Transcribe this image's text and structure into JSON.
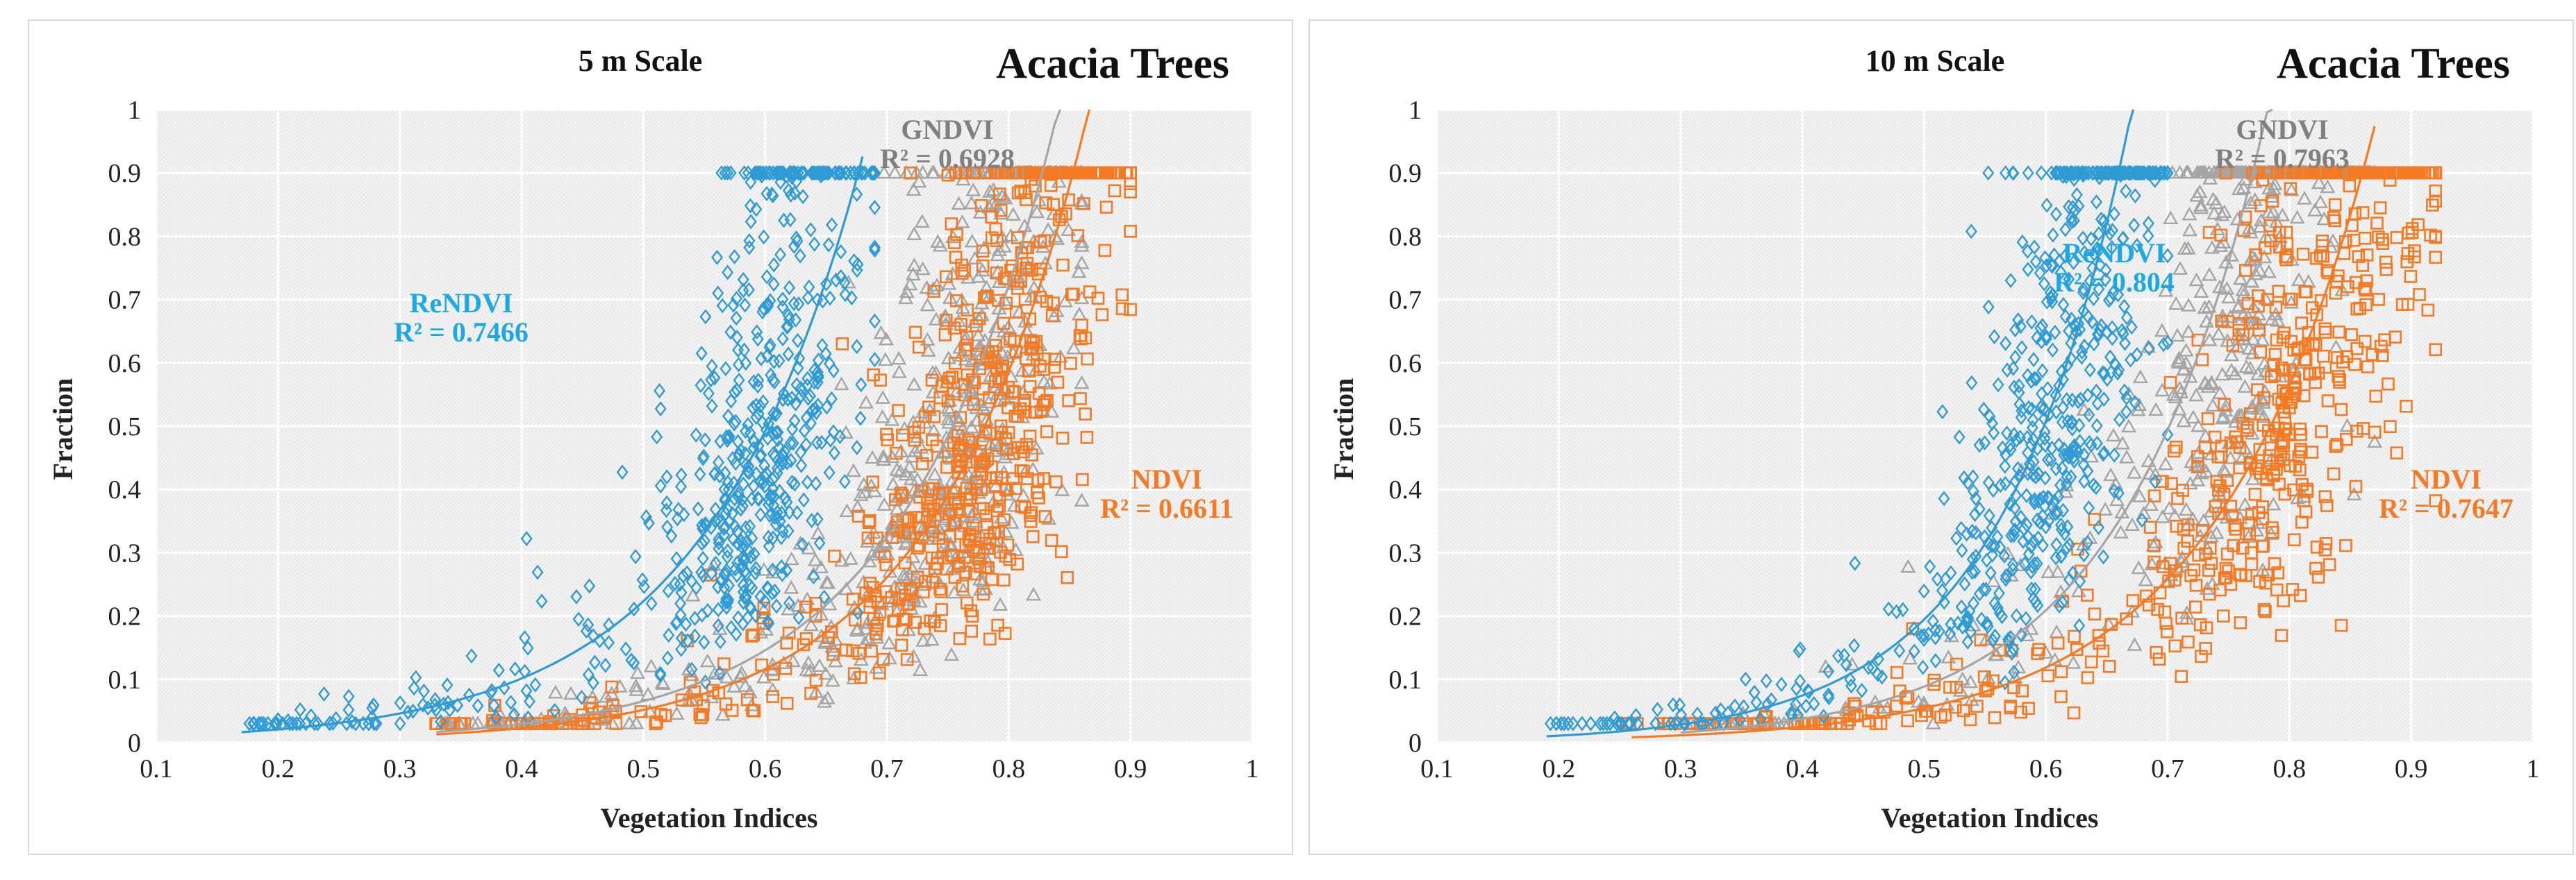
{
  "chart_data": [
    {
      "type": "scatter",
      "title": "5 m Scale",
      "species_label": "Acacia Trees",
      "xlabel": "Vegetation Indices",
      "ylabel": "Fraction",
      "xlim": [
        0.1,
        1
      ],
      "ylim": [
        0,
        1
      ],
      "xticks": [
        "0.1",
        "0.2",
        "0.3",
        "0.4",
        "0.5",
        "0.6",
        "0.7",
        "0.8",
        "0.9",
        "1"
      ],
      "yticks": [
        "0",
        "0.1",
        "0.2",
        "0.3",
        "0.4",
        "0.5",
        "0.6",
        "0.7",
        "0.8",
        "0.9",
        "1"
      ],
      "series": [
        {
          "name": "GNDVI",
          "r2_text": "R² = 0.6928",
          "color": "#a5a5a5",
          "marker": "triangle",
          "x_range": [
            0.33,
            0.86
          ],
          "x_center": 0.77,
          "x_spread": 0.055,
          "trend": {
            "a": 0.0012,
            "b": 8.0,
            "x0": 0.33,
            "x1": 0.86
          }
        },
        {
          "name": "NDVI",
          "r2_text": "R² = 0.6611",
          "color": "#f47a24",
          "marker": "square",
          "x_range": [
            0.32,
            0.9
          ],
          "x_center": 0.79,
          "x_spread": 0.06,
          "trend": {
            "a": 0.0009,
            "b": 8.1,
            "x0": 0.33,
            "x1": 0.88
          }
        },
        {
          "name": "ReNDVI",
          "r2_text": "R² = 0.7466",
          "color": "#2e9ad6",
          "marker": "diamond",
          "x_range": [
            0.17,
            0.69
          ],
          "x_center": 0.6,
          "x_spread": 0.045,
          "trend": {
            "a": 0.0043,
            "b": 7.9,
            "x0": 0.17,
            "x1": 0.68
          }
        }
      ]
    },
    {
      "type": "scatter",
      "title": "10 m Scale",
      "species_label": "Acacia Trees",
      "xlabel": "Vegetation Indices",
      "ylabel": "Fraction",
      "xlim": [
        0.1,
        1
      ],
      "ylim": [
        0,
        1
      ],
      "xticks": [
        "0.1",
        "0.2",
        "0.3",
        "0.4",
        "0.5",
        "0.6",
        "0.7",
        "0.8",
        "0.9",
        "1"
      ],
      "yticks": [
        "0",
        "0.1",
        "0.2",
        "0.3",
        "0.4",
        "0.5",
        "0.6",
        "0.7",
        "0.8",
        "0.9",
        "1"
      ],
      "series": [
        {
          "name": "GNDVI",
          "r2_text": "R² = 0.7963",
          "color": "#a5a5a5",
          "marker": "triangle",
          "x_range": [
            0.3,
            0.87
          ],
          "x_center": 0.78,
          "x_spread": 0.05,
          "trend": {
            "a": 0.0012,
            "b": 8.6,
            "x0": 0.3,
            "x1": 0.84
          }
        },
        {
          "name": "NDVI",
          "r2_text": "R² = 0.7647",
          "color": "#f47a24",
          "marker": "square",
          "x_range": [
            0.25,
            0.92
          ],
          "x_center": 0.82,
          "x_spread": 0.06,
          "trend": {
            "a": 0.0011,
            "b": 7.8,
            "x0": 0.26,
            "x1": 0.87
          }
        },
        {
          "name": "ReNDVI",
          "r2_text": "R² = 0.804",
          "color": "#2e9ad6",
          "marker": "diamond",
          "x_range": [
            0.19,
            0.7
          ],
          "x_center": 0.62,
          "x_spread": 0.045,
          "trend": {
            "a": 0.0016,
            "b": 9.6,
            "x0": 0.19,
            "x1": 0.68
          }
        }
      ]
    }
  ]
}
